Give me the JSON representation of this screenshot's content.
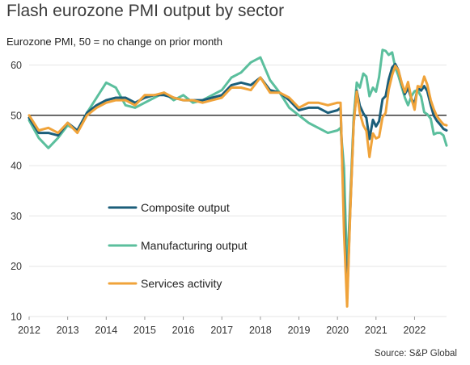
{
  "title": "Flash eurozone PMI output by sector",
  "subtitle": "Eurozone PMI, 50 = no change on prior month",
  "source": "Source: S&P Global",
  "chart_data": {
    "type": "line",
    "title": "Flash eurozone PMI output by sector",
    "subtitle": "Eurozone PMI, 50 = no change on prior month",
    "xlabel": "",
    "ylabel": "",
    "xlim": [
      2012.0,
      2022.83
    ],
    "ylim": [
      10,
      62
    ],
    "yticks": [
      10,
      20,
      30,
      40,
      50,
      60
    ],
    "xticks": [
      "2012",
      "2013",
      "2014",
      "2015",
      "2016",
      "2017",
      "2018",
      "2019",
      "2020",
      "2021",
      "2022"
    ],
    "reference_line": 50,
    "grid": "horizontal",
    "legend_position": "center-left",
    "series": [
      {
        "name": "Composite output",
        "color": "#1b5e7a",
        "x": [
          2012.0,
          2012.25,
          2012.5,
          2012.75,
          2013.0,
          2013.25,
          2013.5,
          2013.75,
          2014.0,
          2014.25,
          2014.5,
          2014.75,
          2015.0,
          2015.25,
          2015.5,
          2015.75,
          2016.0,
          2016.25,
          2016.5,
          2016.75,
          2017.0,
          2017.25,
          2017.5,
          2017.75,
          2018.0,
          2018.25,
          2018.5,
          2018.75,
          2019.0,
          2019.25,
          2019.5,
          2019.75,
          2020.0,
          2020.08,
          2020.17,
          2020.25,
          2020.33,
          2020.42,
          2020.5,
          2020.58,
          2020.67,
          2020.75,
          2020.83,
          2020.92,
          2021.0,
          2021.08,
          2021.17,
          2021.25,
          2021.33,
          2021.42,
          2021.5,
          2021.58,
          2021.67,
          2021.75,
          2021.83,
          2021.92,
          2022.0,
          2022.08,
          2022.17,
          2022.25,
          2022.33,
          2022.42,
          2022.5,
          2022.58,
          2022.67,
          2022.75,
          2022.83
        ],
        "values": [
          49.5,
          46.5,
          46.5,
          46.0,
          48.5,
          47.0,
          50.5,
          52.0,
          53.0,
          53.5,
          53.5,
          52.5,
          53.5,
          54.0,
          54.0,
          53.5,
          53.0,
          53.0,
          53.0,
          53.5,
          54.0,
          56.0,
          56.5,
          56.0,
          57.5,
          55.0,
          54.5,
          53.0,
          51.0,
          51.5,
          51.5,
          50.5,
          51.0,
          51.5,
          29.5,
          13.5,
          31.0,
          48.5,
          54.9,
          51.9,
          50.4,
          49.5,
          45.3,
          49.1,
          47.8,
          48.8,
          53.2,
          53.8,
          57.1,
          59.5,
          60.2,
          59.0,
          56.2,
          54.2,
          55.4,
          53.3,
          52.3,
          55.5,
          54.9,
          55.8,
          54.8,
          52.0,
          49.9,
          48.9,
          48.1,
          47.3,
          47.0
        ]
      },
      {
        "name": "Manufacturing output",
        "color": "#5bbf9d",
        "x": [
          2012.0,
          2012.25,
          2012.5,
          2012.75,
          2013.0,
          2013.25,
          2013.5,
          2013.75,
          2014.0,
          2014.25,
          2014.5,
          2014.75,
          2015.0,
          2015.25,
          2015.5,
          2015.75,
          2016.0,
          2016.25,
          2016.5,
          2016.75,
          2017.0,
          2017.25,
          2017.5,
          2017.75,
          2018.0,
          2018.25,
          2018.5,
          2018.75,
          2019.0,
          2019.25,
          2019.5,
          2019.75,
          2020.0,
          2020.08,
          2020.17,
          2020.25,
          2020.33,
          2020.42,
          2020.5,
          2020.58,
          2020.67,
          2020.75,
          2020.83,
          2020.92,
          2021.0,
          2021.08,
          2021.17,
          2021.25,
          2021.33,
          2021.42,
          2021.5,
          2021.58,
          2021.67,
          2021.75,
          2021.83,
          2021.92,
          2022.0,
          2022.08,
          2022.17,
          2022.25,
          2022.33,
          2022.42,
          2022.5,
          2022.58,
          2022.67,
          2022.75,
          2022.83
        ],
        "values": [
          49.0,
          45.5,
          43.5,
          45.5,
          48.0,
          47.0,
          50.5,
          53.5,
          56.5,
          55.5,
          52.0,
          51.5,
          52.5,
          53.5,
          54.5,
          53.0,
          54.0,
          52.5,
          53.0,
          54.0,
          55.0,
          57.5,
          58.5,
          60.5,
          61.5,
          57.0,
          54.5,
          51.5,
          50.0,
          48.5,
          47.5,
          46.5,
          47.0,
          47.5,
          39.5,
          18.5,
          33.0,
          49.5,
          56.5,
          55.5,
          58.3,
          57.7,
          53.8,
          55.5,
          54.7,
          57.6,
          63.0,
          62.8,
          62.0,
          62.5,
          59.5,
          57.9,
          55.6,
          53.5,
          52.0,
          53.8,
          54.8,
          55.0,
          53.7,
          50.6,
          50.2,
          49.3,
          46.2,
          46.5,
          46.5,
          46.0,
          44.0
        ]
      },
      {
        "name": "Services activity",
        "color": "#f0a33a",
        "x": [
          2012.0,
          2012.25,
          2012.5,
          2012.75,
          2013.0,
          2013.25,
          2013.5,
          2013.75,
          2014.0,
          2014.25,
          2014.5,
          2014.75,
          2015.0,
          2015.25,
          2015.5,
          2015.75,
          2016.0,
          2016.25,
          2016.5,
          2016.75,
          2017.0,
          2017.25,
          2017.5,
          2017.75,
          2018.0,
          2018.25,
          2018.5,
          2018.75,
          2019.0,
          2019.25,
          2019.5,
          2019.75,
          2020.0,
          2020.08,
          2020.17,
          2020.25,
          2020.33,
          2020.42,
          2020.5,
          2020.58,
          2020.67,
          2020.75,
          2020.83,
          2020.92,
          2021.0,
          2021.08,
          2021.17,
          2021.25,
          2021.33,
          2021.42,
          2021.5,
          2021.58,
          2021.67,
          2021.75,
          2021.83,
          2021.92,
          2022.0,
          2022.08,
          2022.17,
          2022.25,
          2022.33,
          2022.42,
          2022.5,
          2022.58,
          2022.67,
          2022.75,
          2022.83
        ],
        "values": [
          50.0,
          47.0,
          47.5,
          46.5,
          48.5,
          46.5,
          50.0,
          51.5,
          52.5,
          53.0,
          53.0,
          52.0,
          54.0,
          54.0,
          54.5,
          53.5,
          53.0,
          53.0,
          52.5,
          53.0,
          53.5,
          55.5,
          55.5,
          55.0,
          57.5,
          54.5,
          54.5,
          53.5,
          51.5,
          52.5,
          52.5,
          52.0,
          52.5,
          52.5,
          26.5,
          12.0,
          30.5,
          48.3,
          54.7,
          50.5,
          48.0,
          46.9,
          41.7,
          46.4,
          45.4,
          45.7,
          49.6,
          50.5,
          55.1,
          58.0,
          59.8,
          59.0,
          56.4,
          54.6,
          56.6,
          53.3,
          51.1,
          55.8,
          55.6,
          57.7,
          56.1,
          53.0,
          51.2,
          49.8,
          48.9,
          48.2,
          48.0
        ]
      }
    ]
  }
}
